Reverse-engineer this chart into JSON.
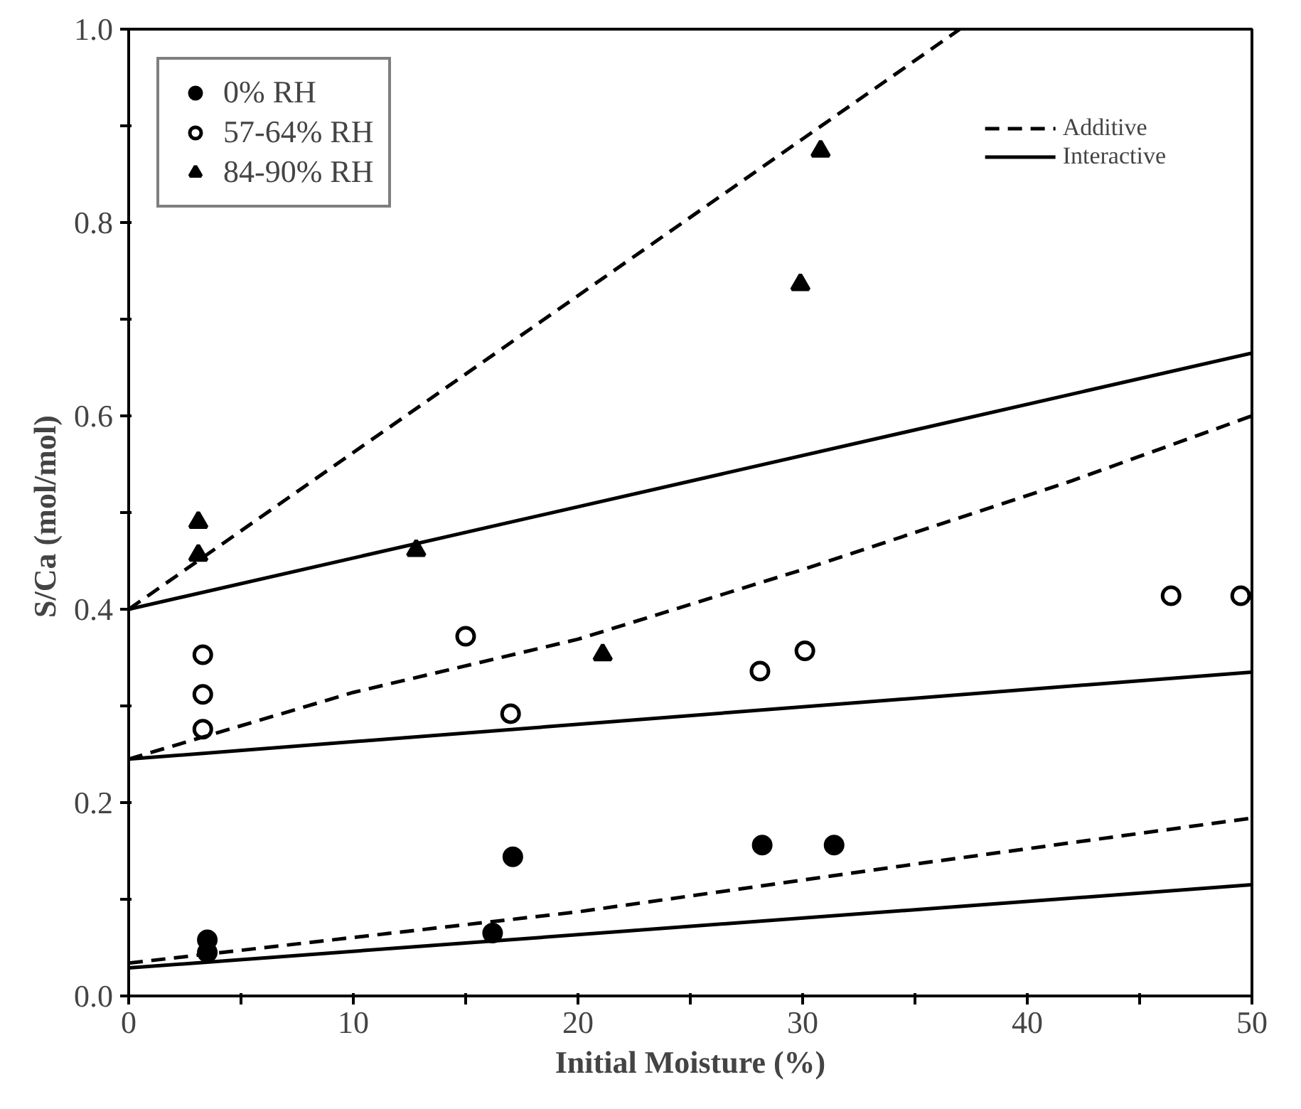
{
  "chart_data": {
    "type": "scatter",
    "xlabel": "Initial Moisture (%)",
    "ylabel": "S/Ca  (mol/mol)",
    "xlim": [
      0,
      50
    ],
    "ylim": [
      0,
      1
    ],
    "xticks": [
      0,
      {
        "value": 5,
        "label": null
      },
      10,
      {
        "value": 15,
        "label": null
      },
      20,
      {
        "value": 25,
        "label": null
      },
      30,
      {
        "value": 35,
        "label": null
      },
      40,
      {
        "value": 45,
        "label": null
      },
      50
    ],
    "yticks": [
      {
        "value": 0,
        "label": "0.0"
      },
      {
        "value": 0.1,
        "label": null
      },
      0.2,
      {
        "value": 0.3,
        "label": null
      },
      0.4,
      {
        "value": 0.5,
        "label": null
      },
      0.6,
      {
        "value": 0.7,
        "label": null
      },
      0.8,
      {
        "value": 0.9,
        "label": null
      },
      {
        "value": 1,
        "label": "1.0"
      }
    ],
    "grid": false,
    "legend": "top left",
    "series": [
      {
        "name": "0% RH",
        "marker": "circle",
        "color": "#000000",
        "x": [
          3.5,
          3.5,
          16.2,
          17.1,
          28.2,
          31.4
        ],
        "values": [
          0.058,
          0.045,
          0.065,
          0.144,
          0.156,
          0.156
        ]
      },
      {
        "name": "57-64% RH",
        "marker": "circle",
        "color": "#ffffff",
        "x": [
          3.3,
          3.3,
          3.3,
          15,
          17,
          28.1,
          30.1,
          46.4,
          49.5
        ],
        "values": [
          0.353,
          0.312,
          0.276,
          0.372,
          0.292,
          0.336,
          0.357,
          0.414,
          0.414
        ]
      },
      {
        "name": "84-90% RH",
        "marker": "triangle",
        "color": "#000000",
        "x": [
          3.1,
          3.1,
          12.8,
          21.1,
          29.9,
          30.8
        ],
        "values": [
          0.49,
          0.456,
          0.461,
          0.353,
          0.736,
          0.874
        ]
      },
      {
        "name": "Additive",
        "type": "line",
        "line_style": "dashed",
        "color": "#000000",
        "x": [
          0,
          37
        ],
        "values": [
          0.4,
          1.0
        ]
      },
      {
        "name": "Interactive",
        "type": "line",
        "line_style": "solid",
        "color": "#000000",
        "x": [
          0,
          50
        ],
        "values": [
          0.4,
          0.665
        ]
      },
      {
        "type": "line",
        "line_style": "dashed",
        "color": "#000000",
        "x": [
          0,
          10,
          20,
          30,
          42,
          50
        ],
        "values": [
          0.245,
          0.314,
          0.369,
          0.441,
          0.533,
          0.6
        ]
      },
      {
        "type": "line",
        "line_style": "solid",
        "color": "#000000",
        "x": [
          0,
          50
        ],
        "values": [
          0.245,
          0.335
        ]
      },
      {
        "type": "line",
        "line_style": "dashed",
        "color": "#000000",
        "x": [
          0,
          20,
          35.5,
          50
        ],
        "values": [
          0.034,
          0.087,
          0.138,
          0.184
        ]
      },
      {
        "type": "line",
        "line_style": "solid",
        "color": "#000000",
        "x": [
          0,
          50
        ],
        "values": [
          0.029,
          0.115
        ]
      }
    ]
  }
}
